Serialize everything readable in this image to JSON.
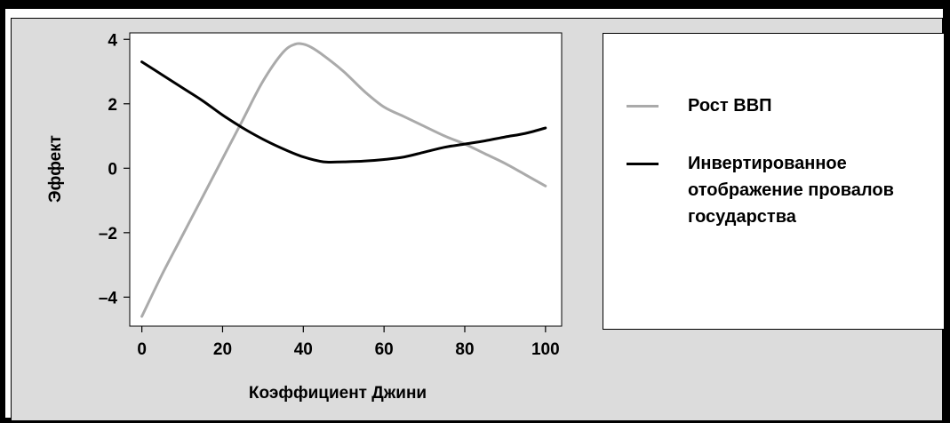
{
  "chart_data": {
    "type": "line",
    "title": "",
    "xlabel": "Коэффициент Джини",
    "ylabel": "Эффект",
    "xlim": [
      -3,
      104
    ],
    "ylim": [
      -4.9,
      4.2
    ],
    "x_ticks": [
      0,
      20,
      40,
      60,
      80,
      100
    ],
    "y_ticks": [
      4,
      2,
      0,
      -2,
      -4
    ],
    "x_tick_labels": [
      "0",
      "20",
      "40",
      "60",
      "80",
      "100"
    ],
    "y_tick_labels": [
      "4",
      "2",
      "0",
      "–2",
      "–4"
    ],
    "grid": false,
    "legend_position": "right",
    "series": [
      {
        "name": "Рост ВВП",
        "color": "#aaaaaa",
        "x": [
          0,
          5,
          10,
          15,
          20,
          25,
          30,
          35,
          38,
          40,
          42,
          45,
          50,
          55,
          60,
          65,
          70,
          75,
          80,
          85,
          90,
          95,
          100
        ],
        "y": [
          -4.6,
          -3.3,
          -2.1,
          -0.9,
          0.3,
          1.5,
          2.7,
          3.6,
          3.85,
          3.85,
          3.75,
          3.5,
          3.0,
          2.4,
          1.9,
          1.6,
          1.3,
          1.0,
          0.75,
          0.45,
          0.15,
          -0.2,
          -0.55
        ]
      },
      {
        "name": "Инвертированное отображение провалов государства",
        "color": "#000000",
        "x": [
          0,
          5,
          10,
          15,
          20,
          25,
          30,
          35,
          40,
          45,
          50,
          55,
          60,
          65,
          70,
          75,
          80,
          85,
          90,
          95,
          100
        ],
        "y": [
          3.3,
          2.9,
          2.5,
          2.1,
          1.65,
          1.25,
          0.9,
          0.6,
          0.35,
          0.2,
          0.2,
          0.22,
          0.27,
          0.35,
          0.5,
          0.65,
          0.75,
          0.85,
          0.97,
          1.08,
          1.25
        ]
      }
    ]
  }
}
